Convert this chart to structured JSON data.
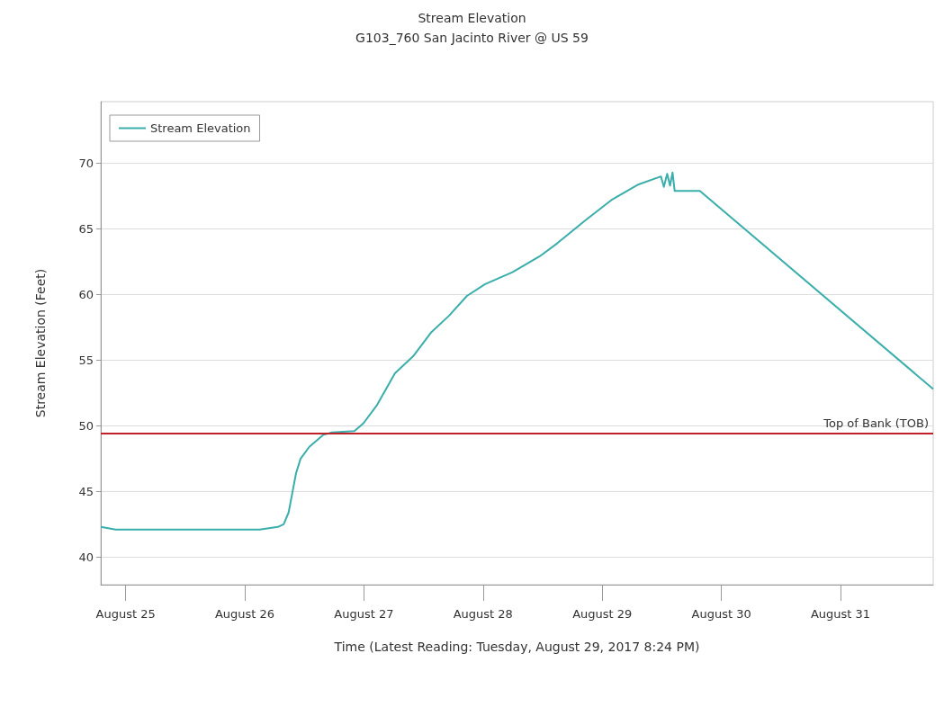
{
  "chart_data": {
    "type": "line",
    "title": "Stream Elevation",
    "subtitle": "G103_760 San Jacinto River @ US 59",
    "xlabel": "Time (Latest Reading: Tuesday, August 29, 2017 8:24 PM)",
    "ylabel": "Stream Elevation (Feet)",
    "series": [
      {
        "name": "Stream Elevation",
        "color": "#3aaeaa",
        "x": [
          "2017-08-24T19:00",
          "2017-08-24T22:00",
          "2017-08-26T03:00",
          "2017-08-26T06:40",
          "2017-08-26T07:50",
          "2017-08-26T08:50",
          "2017-08-26T09:35",
          "2017-08-26T10:20",
          "2017-08-26T11:15",
          "2017-08-26T13:00",
          "2017-08-26T15:45",
          "2017-08-26T17:35",
          "2017-08-26T22:05",
          "2017-08-26T23:55",
          "2017-08-27T02:40",
          "2017-08-27T06:15",
          "2017-08-27T09:55",
          "2017-08-27T13:30",
          "2017-08-27T17:10",
          "2017-08-27T20:45",
          "2017-08-28T00:25",
          "2017-08-28T05:55",
          "2017-08-28T11:20",
          "2017-08-28T14:55",
          "2017-08-28T20:25",
          "2017-08-29T01:50",
          "2017-08-29T07:20",
          "2017-08-29T11:50",
          "2017-08-29T12:25",
          "2017-08-29T13:05",
          "2017-08-29T13:40",
          "2017-08-29T14:10",
          "2017-08-29T14:35",
          "2017-08-29T19:40",
          "2017-08-31T18:40"
        ],
        "values": [
          42.3,
          42.1,
          42.1,
          42.3,
          42.5,
          43.4,
          44.9,
          46.4,
          47.5,
          48.4,
          49.3,
          49.5,
          49.6,
          50.2,
          51.6,
          54.0,
          55.3,
          57.1,
          58.4,
          59.9,
          60.8,
          61.7,
          62.9,
          63.9,
          65.6,
          67.2,
          68.4,
          69.0,
          68.2,
          69.2,
          68.3,
          69.3,
          67.9,
          67.9,
          52.8
        ]
      }
    ],
    "xlim": [
      "2017-08-24T19:00",
      "2017-08-31T18:40"
    ],
    "xticks": [
      {
        "value": "2017-08-25",
        "label": "August 25"
      },
      {
        "value": "2017-08-26",
        "label": "August 26"
      },
      {
        "value": "2017-08-27",
        "label": "August 27"
      },
      {
        "value": "2017-08-28",
        "label": "August 28"
      },
      {
        "value": "2017-08-29",
        "label": "August 29"
      },
      {
        "value": "2017-08-30",
        "label": "August 30"
      },
      {
        "value": "2017-08-31",
        "label": "August 31"
      }
    ],
    "ylim": [
      37.9,
      74.7
    ],
    "yticks": [
      40,
      45,
      50,
      55,
      60,
      65,
      70
    ],
    "ref_lines": [
      {
        "axis": "y",
        "value": 49.4,
        "label": "Top of Bank (TOB)",
        "color": "#c0202a"
      }
    ],
    "grid": "y",
    "legend": "top left",
    "marker": "none",
    "line_style": "solid"
  }
}
